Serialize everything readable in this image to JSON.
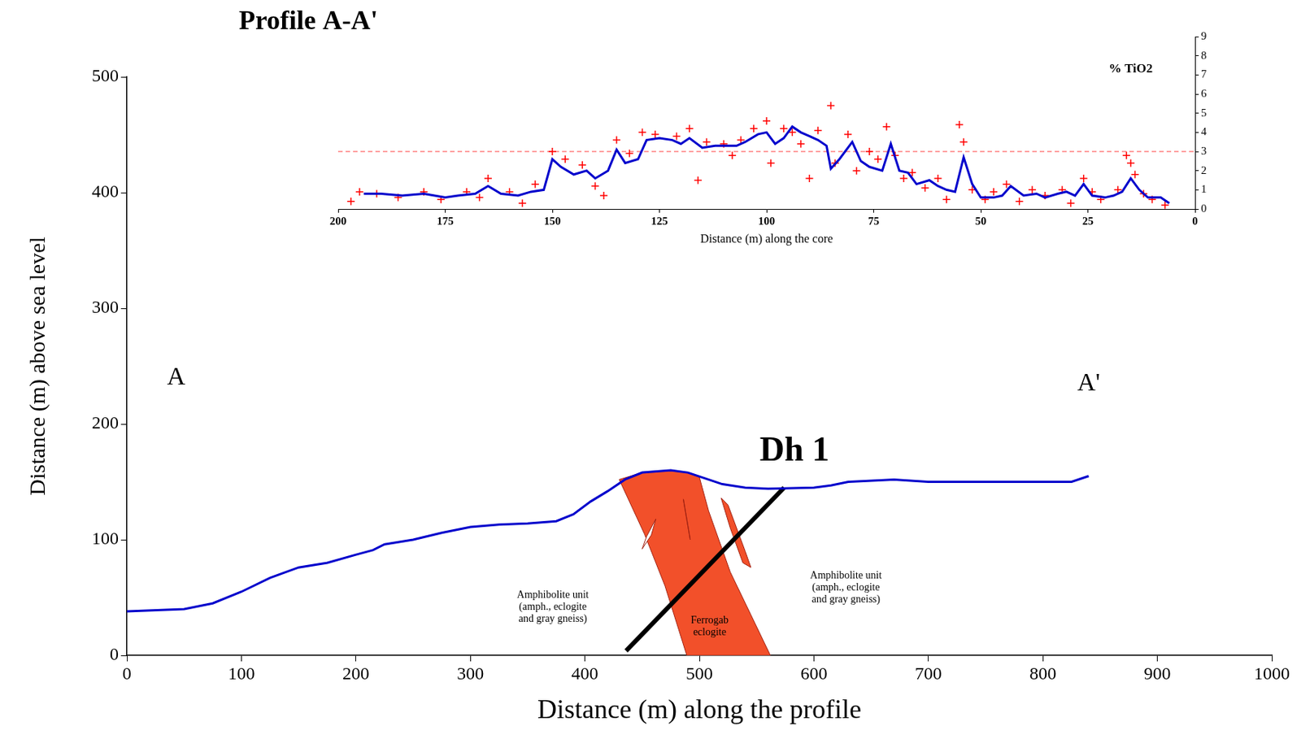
{
  "chart_data": [
    {
      "type": "line",
      "title": "Profile A-A'",
      "x_label": "Distance (m) along the profile",
      "y_label": "Distance (m) above sea level",
      "xlim": [
        0,
        1000
      ],
      "xticks": [
        0,
        100,
        200,
        300,
        400,
        500,
        600,
        700,
        800,
        900,
        1000
      ],
      "ylim": [
        0,
        500
      ],
      "yticks": [
        0,
        100,
        200,
        300,
        400,
        500
      ],
      "grid": false,
      "series": [
        {
          "type": "line",
          "color": "#0000cc",
          "x": [
            0,
            50,
            75,
            100,
            125,
            150,
            175,
            200,
            215,
            225,
            250,
            275,
            300,
            325,
            350,
            375,
            390,
            405,
            420,
            435,
            450,
            475,
            490,
            505,
            520,
            540,
            560,
            600,
            615,
            630,
            670,
            700,
            750,
            800,
            825,
            840
          ],
          "values": [
            38,
            40,
            45,
            55,
            67,
            76,
            80,
            87,
            91,
            96,
            100,
            106,
            111,
            113,
            114,
            116,
            122,
            133,
            142,
            152,
            158,
            160,
            158,
            153,
            148,
            145,
            144,
            145,
            147,
            150,
            152,
            150,
            150,
            150,
            150,
            155
          ]
        }
      ],
      "bodies": [
        {
          "color": "#f2502a",
          "x": [
            430,
            450,
            475,
            490,
            500,
            508,
            527,
            545,
            562,
            489,
            470,
            452,
            430
          ],
          "values": [
            152,
            158,
            160,
            158,
            154,
            125,
            72,
            35,
            0,
            0,
            60,
            105,
            152
          ]
        },
        {
          "color": "#f2502a",
          "x": [
            519,
            525,
            540,
            545,
            538,
            527,
            519
          ],
          "values": [
            136,
            130,
            90,
            76,
            80,
            110,
            136
          ]
        },
        {
          "color": "#ffffff",
          "x": [
            462,
            458,
            450,
            454,
            462
          ],
          "values": [
            118,
            104,
            92,
            103,
            118
          ]
        },
        {
          "color": "#ffffff",
          "x": [
            486,
            489,
            492,
            489,
            486
          ],
          "values": [
            135,
            118,
            100,
            117,
            135
          ]
        }
      ],
      "drill_hole": {
        "label": "Dh 1",
        "label_x": 583,
        "label_y": 176,
        "color": "#000000",
        "x": [
          574,
          436
        ],
        "values": [
          145,
          4
        ]
      },
      "section_labels": [
        {
          "text": "A",
          "x": 43,
          "y": 240
        },
        {
          "text": "A'",
          "x": 840,
          "y": 235
        }
      ],
      "units": [
        {
          "text": [
            "Amphibolite unit",
            "(amph., eclogite",
            "and gray gneiss)"
          ],
          "x": 372,
          "y": 52
        },
        {
          "text": [
            "Amphibolite unit",
            "(amph., eclogite",
            "and gray gneiss)"
          ],
          "x": 628,
          "y": 69
        },
        {
          "text": [
            "Ferrogab",
            "eclogite"
          ],
          "x": 509,
          "y": 30
        }
      ]
    },
    {
      "type": "scatter",
      "title": "% TiO2",
      "title_x": 15,
      "title_y": 7.3,
      "x_label": "Distance (m) along the core",
      "xlim": [
        200,
        0
      ],
      "xticks": [
        200,
        175,
        150,
        125,
        100,
        75,
        50,
        25,
        0
      ],
      "ylim": [
        0,
        9
      ],
      "yticks": [
        0,
        1,
        2,
        3,
        4,
        5,
        6,
        7,
        8,
        9
      ],
      "grid": false,
      "series": [
        {
          "type": "scatter",
          "marker": "cross",
          "color": "#ff0000",
          "x": [
            197,
            195,
            191,
            186,
            180,
            176,
            170,
            167,
            165,
            160,
            157,
            154,
            150,
            147,
            143,
            140,
            138,
            135,
            132,
            129,
            126,
            121,
            118,
            116,
            114,
            110,
            108,
            106,
            103,
            100,
            99,
            96,
            94,
            92,
            90,
            88,
            85,
            84,
            81,
            79,
            76,
            74,
            72,
            70,
            68,
            66,
            63,
            60,
            58,
            55,
            54,
            52,
            49,
            47,
            44,
            41,
            38,
            35,
            31,
            29,
            26,
            24,
            22,
            18,
            16,
            15,
            14,
            12,
            10,
            7
          ],
          "values": [
            0.4,
            0.9,
            0.8,
            0.6,
            0.9,
            0.5,
            0.9,
            0.6,
            1.6,
            0.9,
            0.3,
            1.3,
            3.0,
            2.6,
            2.3,
            1.2,
            0.7,
            3.6,
            2.9,
            4.0,
            3.9,
            3.8,
            4.2,
            1.5,
            3.5,
            3.4,
            2.8,
            3.6,
            4.2,
            4.6,
            2.4,
            4.2,
            4.0,
            3.4,
            1.6,
            4.1,
            5.4,
            2.4,
            3.9,
            2.0,
            3.0,
            2.6,
            4.3,
            2.8,
            1.6,
            1.9,
            1.1,
            1.6,
            0.5,
            4.4,
            3.5,
            1.0,
            0.5,
            0.9,
            1.3,
            0.4,
            1.0,
            0.7,
            1.0,
            0.3,
            1.6,
            0.9,
            0.5,
            1.0,
            2.8,
            2.4,
            1.8,
            0.8,
            0.5,
            0.2
          ]
        },
        {
          "type": "line",
          "color": "#0000cc",
          "x": [
            194,
            190,
            185,
            180,
            175,
            172,
            168,
            165,
            162,
            158,
            155,
            152,
            150,
            148,
            145,
            142,
            140,
            137,
            135,
            133,
            130,
            128,
            125,
            122,
            120,
            118,
            115,
            112,
            110,
            107,
            105,
            102,
            100,
            98,
            96,
            94,
            92,
            90,
            88,
            86,
            85,
            83,
            80,
            78,
            76,
            73,
            71,
            69,
            67,
            65,
            62,
            60,
            58,
            56,
            54,
            52,
            50,
            47,
            45,
            43,
            40,
            37,
            35,
            32,
            30,
            28,
            26,
            24,
            21,
            19,
            17,
            15,
            13,
            11,
            8,
            6
          ],
          "values": [
            0.8,
            0.8,
            0.7,
            0.8,
            0.6,
            0.7,
            0.8,
            1.2,
            0.8,
            0.7,
            0.9,
            1.0,
            2.6,
            2.2,
            1.8,
            2.0,
            1.6,
            2.0,
            3.1,
            2.4,
            2.6,
            3.6,
            3.7,
            3.6,
            3.4,
            3.7,
            3.2,
            3.3,
            3.3,
            3.3,
            3.5,
            3.9,
            4.0,
            3.4,
            3.7,
            4.3,
            4.0,
            3.8,
            3.6,
            3.3,
            2.1,
            2.6,
            3.5,
            2.5,
            2.2,
            2.0,
            3.4,
            2.0,
            1.9,
            1.3,
            1.5,
            1.2,
            1.0,
            0.9,
            2.7,
            1.3,
            0.6,
            0.6,
            0.7,
            1.2,
            0.7,
            0.8,
            0.6,
            0.8,
            0.9,
            0.7,
            1.3,
            0.7,
            0.6,
            0.7,
            0.9,
            1.6,
            1.0,
            0.6,
            0.6,
            0.3
          ]
        },
        {
          "type": "line",
          "line_style": "dashed",
          "color": "#ff8080",
          "x": [
            200,
            0
          ],
          "values": [
            3,
            3
          ]
        }
      ]
    }
  ]
}
